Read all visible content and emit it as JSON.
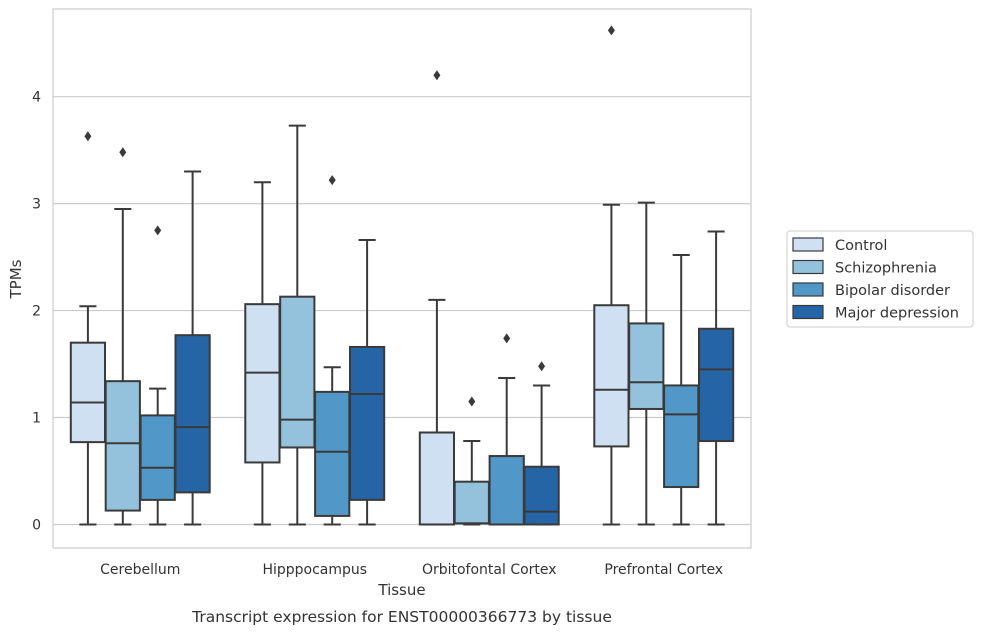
{
  "chart_data": {
    "type": "box",
    "title": "",
    "caption": "Transcript expression for ENST00000366773 by tissue",
    "xlabel": "Tissue",
    "ylabel": "TPMs",
    "ylim": [
      -0.22,
      4.82
    ],
    "yticks": [
      0,
      1,
      2,
      3,
      4
    ],
    "ytick_labels": [
      "0",
      "1",
      "2",
      "3",
      "4"
    ],
    "grid": "horizontal",
    "legend_position": "right",
    "categories": [
      "Cerebellum",
      "Hipppocampus",
      "Orbitofontal Cortex",
      "Prefrontal Cortex"
    ],
    "series": [
      {
        "name": "Control",
        "color": "#cfe0f2",
        "boxes": [
          {
            "min": 0,
            "q1": 0.77,
            "median": 1.14,
            "q3": 1.7,
            "max": 2.04,
            "outliers": [
              3.63
            ]
          },
          {
            "min": 0,
            "q1": 0.58,
            "median": 1.42,
            "q3": 2.06,
            "max": 3.2,
            "outliers": []
          },
          {
            "min": 0,
            "q1": 0.0,
            "median": 0.0,
            "q3": 0.86,
            "max": 2.1,
            "outliers": [
              4.2
            ]
          },
          {
            "min": 0,
            "q1": 0.73,
            "median": 1.26,
            "q3": 2.05,
            "max": 2.99,
            "outliers": [
              4.62
            ]
          }
        ]
      },
      {
        "name": "Schizophrenia",
        "color": "#94c1dc",
        "boxes": [
          {
            "min": 0,
            "q1": 0.13,
            "median": 0.76,
            "q3": 1.34,
            "max": 2.95,
            "outliers": [
              3.48
            ]
          },
          {
            "min": 0,
            "q1": 0.72,
            "median": 0.98,
            "q3": 2.13,
            "max": 3.73,
            "outliers": []
          },
          {
            "min": 0,
            "q1": 0.01,
            "median": 0.01,
            "q3": 0.4,
            "max": 0.78,
            "outliers": [
              1.15
            ]
          },
          {
            "min": 0,
            "q1": 1.08,
            "median": 1.33,
            "q3": 1.88,
            "max": 3.01,
            "outliers": []
          }
        ]
      },
      {
        "name": "Bipolar disorder",
        "color": "#5197c7",
        "boxes": [
          {
            "min": 0,
            "q1": 0.23,
            "median": 0.53,
            "q3": 1.02,
            "max": 1.27,
            "outliers": [
              2.75
            ]
          },
          {
            "min": 0,
            "q1": 0.08,
            "median": 0.68,
            "q3": 1.24,
            "max": 1.47,
            "outliers": [
              3.22
            ]
          },
          {
            "min": 0,
            "q1": 0.0,
            "median": 0.0,
            "q3": 0.64,
            "max": 1.37,
            "outliers": [
              1.74
            ]
          },
          {
            "min": 0,
            "q1": 0.35,
            "median": 1.03,
            "q3": 1.3,
            "max": 2.52,
            "outliers": []
          }
        ]
      },
      {
        "name": "Major depression",
        "color": "#2565a6",
        "boxes": [
          {
            "min": 0,
            "q1": 0.3,
            "median": 0.91,
            "q3": 1.77,
            "max": 3.3,
            "outliers": []
          },
          {
            "min": 0,
            "q1": 0.23,
            "median": 1.22,
            "q3": 1.66,
            "max": 2.66,
            "outliers": []
          },
          {
            "min": 0,
            "q1": 0.0,
            "median": 0.12,
            "q3": 0.54,
            "max": 1.3,
            "outliers": [
              1.48
            ]
          },
          {
            "min": 0,
            "q1": 0.78,
            "median": 1.45,
            "q3": 1.83,
            "max": 2.74,
            "outliers": []
          }
        ]
      }
    ]
  }
}
